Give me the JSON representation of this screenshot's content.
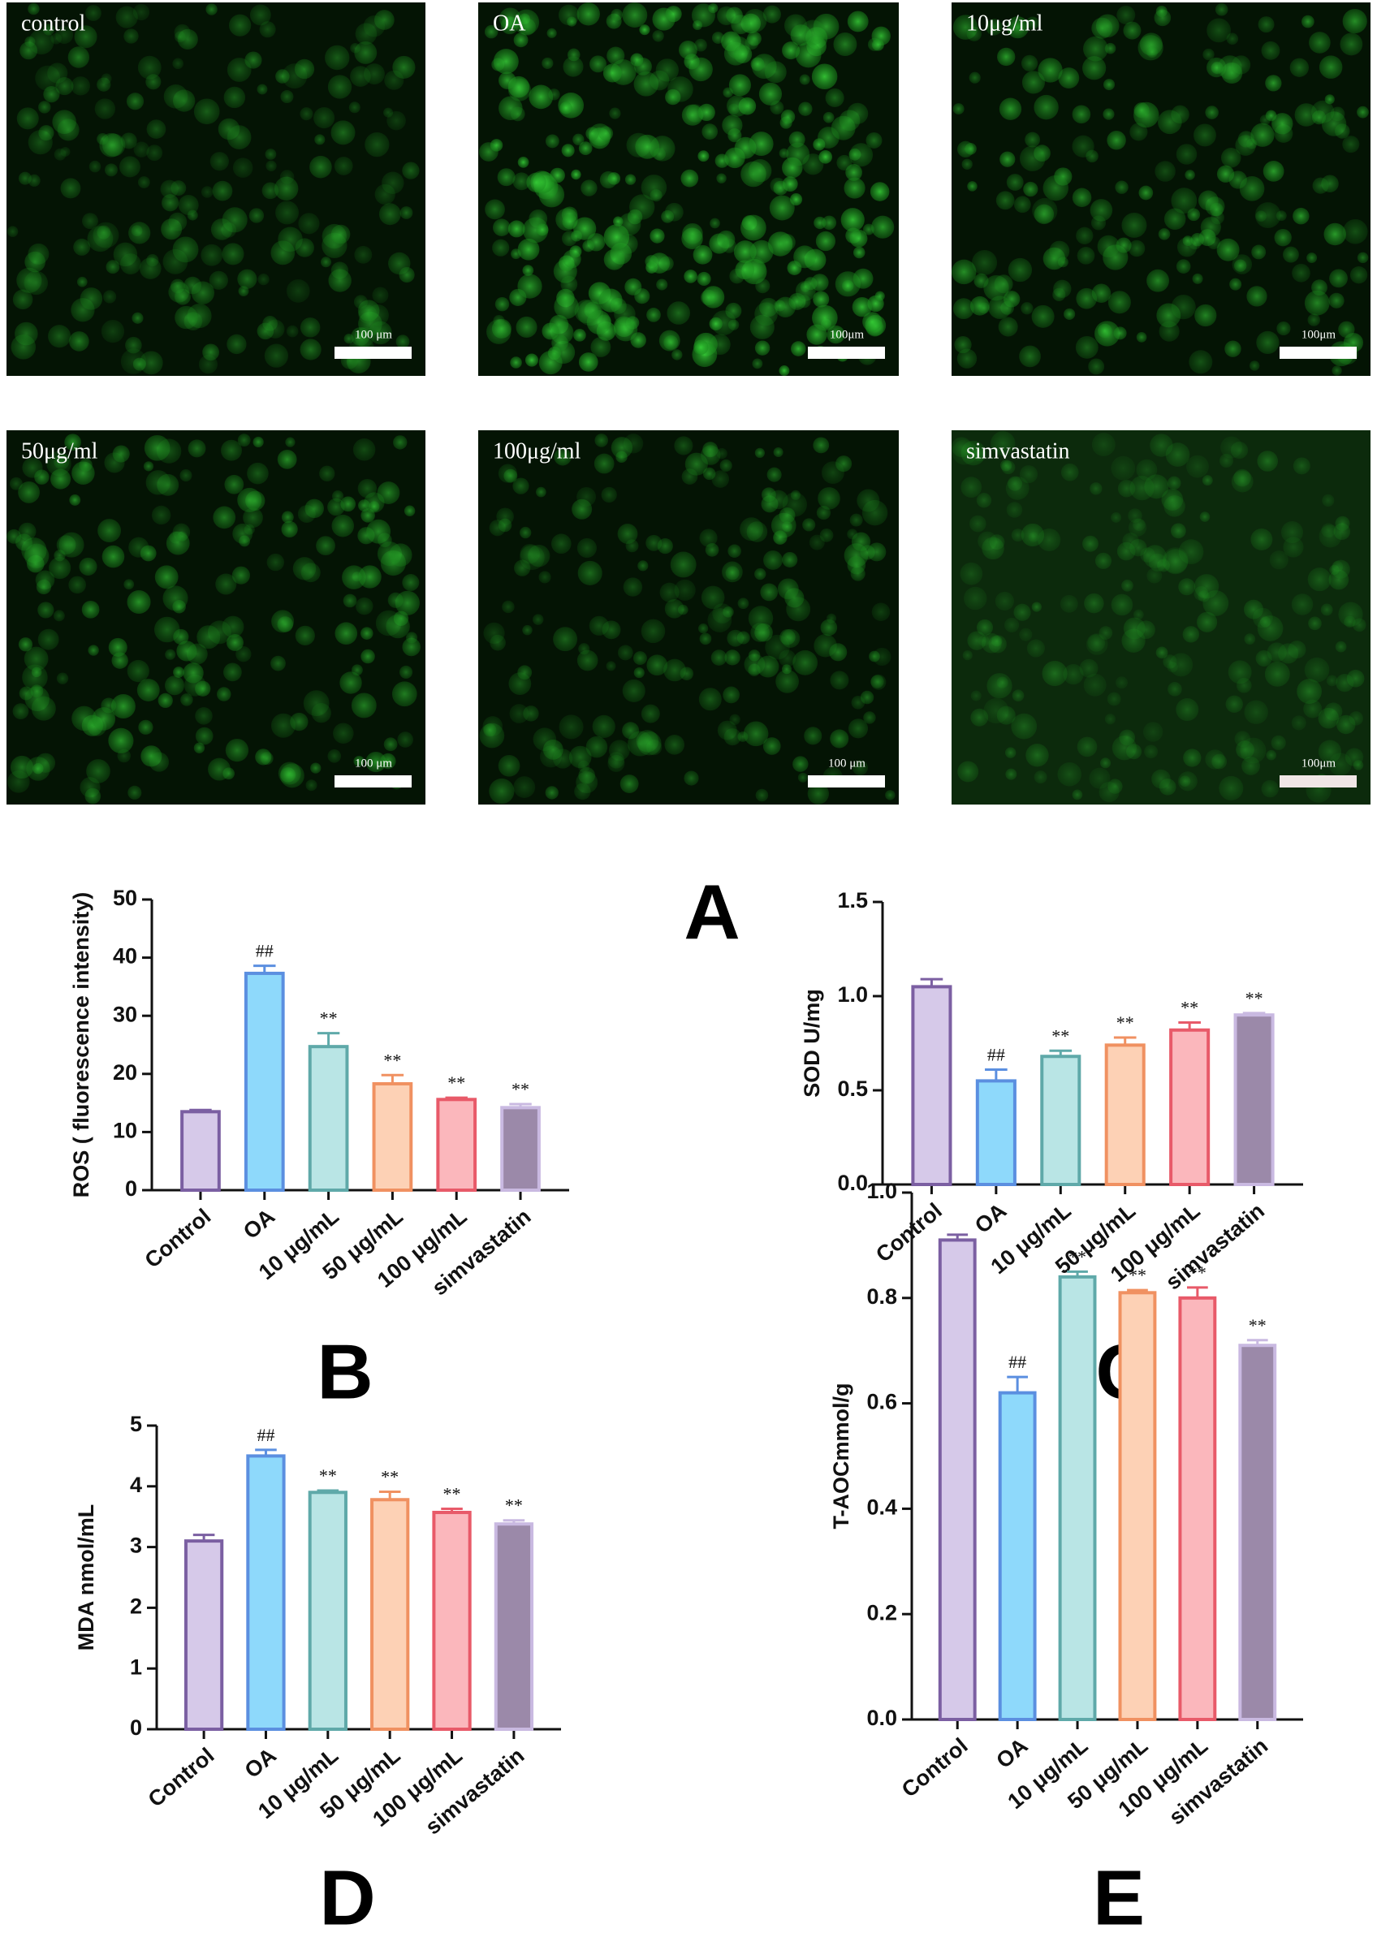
{
  "images": [
    {
      "label": "control",
      "scale_label": "100 μm"
    },
    {
      "label": "OA",
      "scale_label": "100μm"
    },
    {
      "label": "10μg/ml",
      "scale_label": "100μm"
    },
    {
      "label": "50μg/ml",
      "scale_label": "100 μm"
    },
    {
      "label": "100μg/ml",
      "scale_label": "100 μm"
    },
    {
      "label": "simvastatin",
      "scale_label": "100μm"
    }
  ],
  "panel_letters": [
    "A",
    "B",
    "C",
    "D",
    "E"
  ],
  "chart_data": [
    {
      "type": "bar",
      "y_label": "ROS ( fluorescence intensity)",
      "categories": [
        "Control",
        "OA",
        "10 μg/mL",
        "50 μg/mL",
        "100 μg/mL",
        "simvastatin"
      ],
      "values": [
        13.5,
        37.3,
        24.7,
        18.3,
        15.6,
        14.2
      ],
      "errors": [
        0.3,
        1.3,
        2.3,
        1.5,
        0.3,
        0.6
      ],
      "markers": [
        null,
        "##",
        "**",
        "**",
        "**",
        "**"
      ],
      "colors": [
        "#d6c9e9",
        "#8ed9fb",
        "#b9e5e5",
        "#fdd1b5",
        "#fbb7bc",
        "#9b89a9"
      ],
      "edge_colors": [
        "#7b5fa2",
        "#5b8fe0",
        "#5fa9a9",
        "#f09161",
        "#e85a69",
        "#c9b9e1"
      ],
      "ylim": [
        0,
        50
      ],
      "yticks": [
        0,
        10,
        20,
        30,
        40,
        50
      ]
    },
    {
      "type": "bar",
      "y_label": "SOD U/mg",
      "categories": [
        "Control",
        "OA",
        "10 μg/mL",
        "50 μg/mL",
        "100 μg/mL",
        "simvastatin"
      ],
      "values": [
        1.05,
        0.55,
        0.68,
        0.74,
        0.82,
        0.9
      ],
      "errors": [
        0.04,
        0.06,
        0.03,
        0.04,
        0.04,
        0.01
      ],
      "markers": [
        null,
        "##",
        "**",
        "**",
        "**",
        "**"
      ],
      "colors": [
        "#d6c9e9",
        "#8ed9fb",
        "#b9e5e5",
        "#fdd1b5",
        "#fbb7bc",
        "#9b89a9"
      ],
      "edge_colors": [
        "#7b5fa2",
        "#5b8fe0",
        "#5fa9a9",
        "#f09161",
        "#e85a69",
        "#c9b9e1"
      ],
      "ylim": [
        0,
        1.5
      ],
      "yticks": [
        {
          "value": 0,
          "label": "0.0"
        },
        0.5,
        {
          "value": 1,
          "label": "1.0"
        },
        1.5
      ]
    },
    {
      "type": "bar",
      "y_label": "MDA nmol/mL",
      "categories": [
        "Control",
        "OA",
        "10 μg/mL",
        "50 μg/mL",
        "100 μg/mL",
        "simvastatin"
      ],
      "values": [
        3.1,
        4.5,
        3.9,
        3.78,
        3.57,
        3.38
      ],
      "errors": [
        0.1,
        0.1,
        0.03,
        0.13,
        0.06,
        0.06
      ],
      "markers": [
        null,
        "##",
        "**",
        "**",
        "**",
        "**"
      ],
      "colors": [
        "#d6c9e9",
        "#8ed9fb",
        "#b9e5e5",
        "#fdd1b5",
        "#fbb7bc",
        "#9b89a9"
      ],
      "edge_colors": [
        "#7b5fa2",
        "#5b8fe0",
        "#5fa9a9",
        "#f09161",
        "#e85a69",
        "#c9b9e1"
      ],
      "ylim": [
        0,
        5
      ],
      "yticks": [
        0,
        1,
        2,
        3,
        4,
        5
      ]
    },
    {
      "type": "bar",
      "y_label": "T-AOCmmol/g",
      "categories": [
        "Control",
        "OA",
        "10 μg/mL",
        "50 μg/mL",
        "100 μg/mL",
        "simvastatin"
      ],
      "values": [
        0.91,
        0.62,
        0.84,
        0.81,
        0.8,
        0.71
      ],
      "errors": [
        0.01,
        0.03,
        0.01,
        0.005,
        0.02,
        0.01
      ],
      "markers": [
        null,
        "##",
        "**",
        "**",
        "**",
        "**"
      ],
      "colors": [
        "#d6c9e9",
        "#8ed9fb",
        "#b9e5e5",
        "#fdd1b5",
        "#fbb7bc",
        "#9b89a9"
      ],
      "edge_colors": [
        "#7b5fa2",
        "#5b8fe0",
        "#5fa9a9",
        "#f09161",
        "#e85a69",
        "#c9b9e1"
      ],
      "ylim": [
        0,
        1
      ],
      "yticks": [
        {
          "value": 0,
          "label": "0.0"
        },
        0.2,
        0.4,
        0.6,
        0.8,
        {
          "value": 1,
          "label": "1.0"
        }
      ]
    }
  ]
}
